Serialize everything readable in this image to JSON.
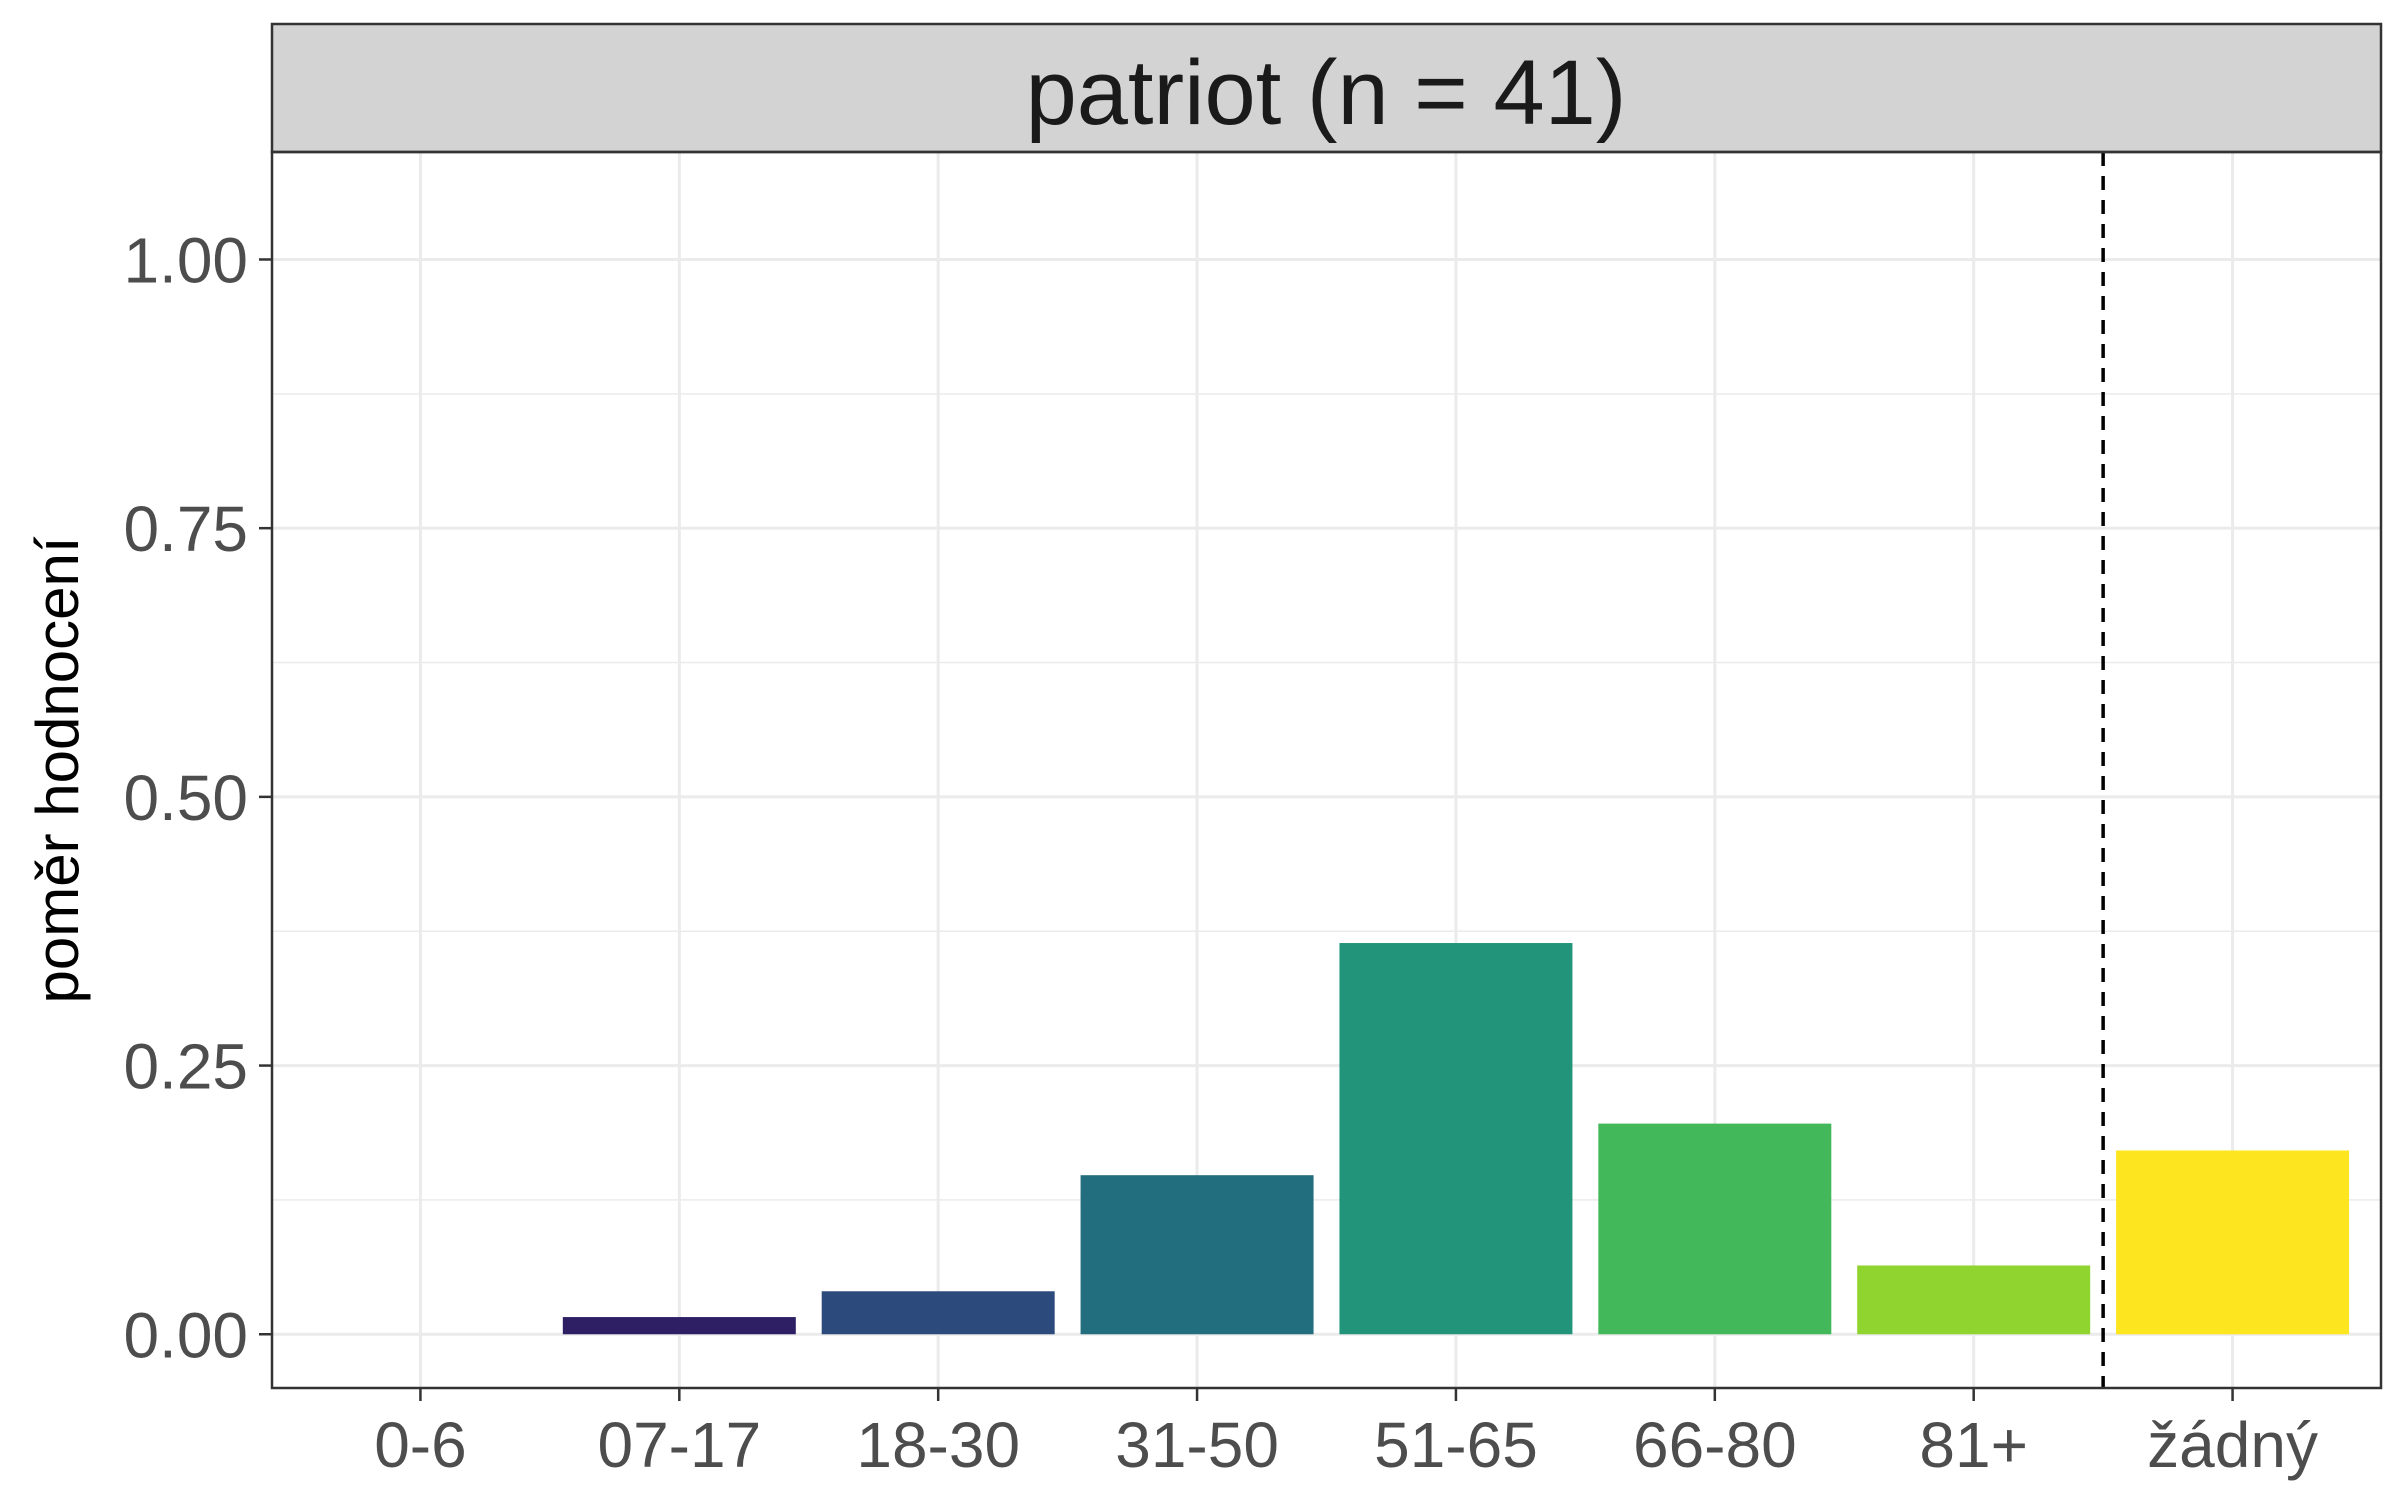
{
  "chart_data": {
    "type": "bar",
    "title": "patriot (n = 41)",
    "xlabel": "",
    "ylabel": "poměr hodnocení",
    "categories": [
      "0-6",
      "07-17",
      "18-30",
      "31-50",
      "51-65",
      "66-80",
      "81+",
      "žádný"
    ],
    "values": [
      0.0,
      0.016,
      0.04,
      0.148,
      0.364,
      0.196,
      0.064,
      0.171
    ],
    "colors": [
      "#440154",
      "#2e1f65",
      "#2c4a7c",
      "#226d7e",
      "#21947a",
      "#42b85a",
      "#8fd42f",
      "#fde51f"
    ],
    "ylim": [
      -0.05,
      1.1
    ],
    "yticks": [
      0.0,
      0.25,
      0.5,
      0.75,
      1.0
    ],
    "ytick_labels": [
      "0.00",
      "0.25",
      "0.50",
      "0.75",
      "1.00"
    ],
    "reference_line": {
      "between": [
        "81+",
        "žádný"
      ],
      "style": "dashed"
    },
    "grid": true,
    "theme": "bw"
  }
}
